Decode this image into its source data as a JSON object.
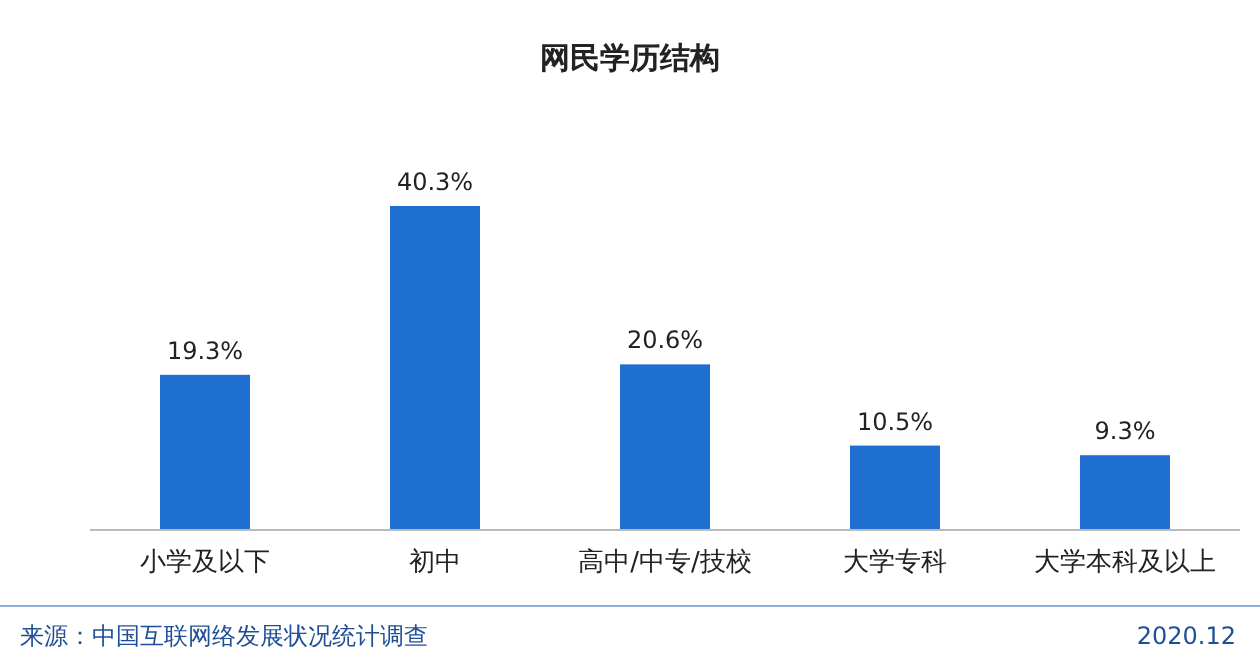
{
  "chart_data": {
    "type": "bar",
    "title": "网民学历结构",
    "categories": [
      "小学及以下",
      "初中",
      "高中/中专/技校",
      "大学专科",
      "大学本科及以上"
    ],
    "values": [
      19.3,
      40.3,
      20.6,
      10.5,
      9.3
    ],
    "value_labels": [
      "19.3%",
      "40.3%",
      "20.6%",
      "10.5%",
      "9.3%"
    ],
    "color": "#1f6fd1",
    "annotations": [
      "来源：中国互联网络发展状况统计调查",
      "2020.12"
    ]
  }
}
